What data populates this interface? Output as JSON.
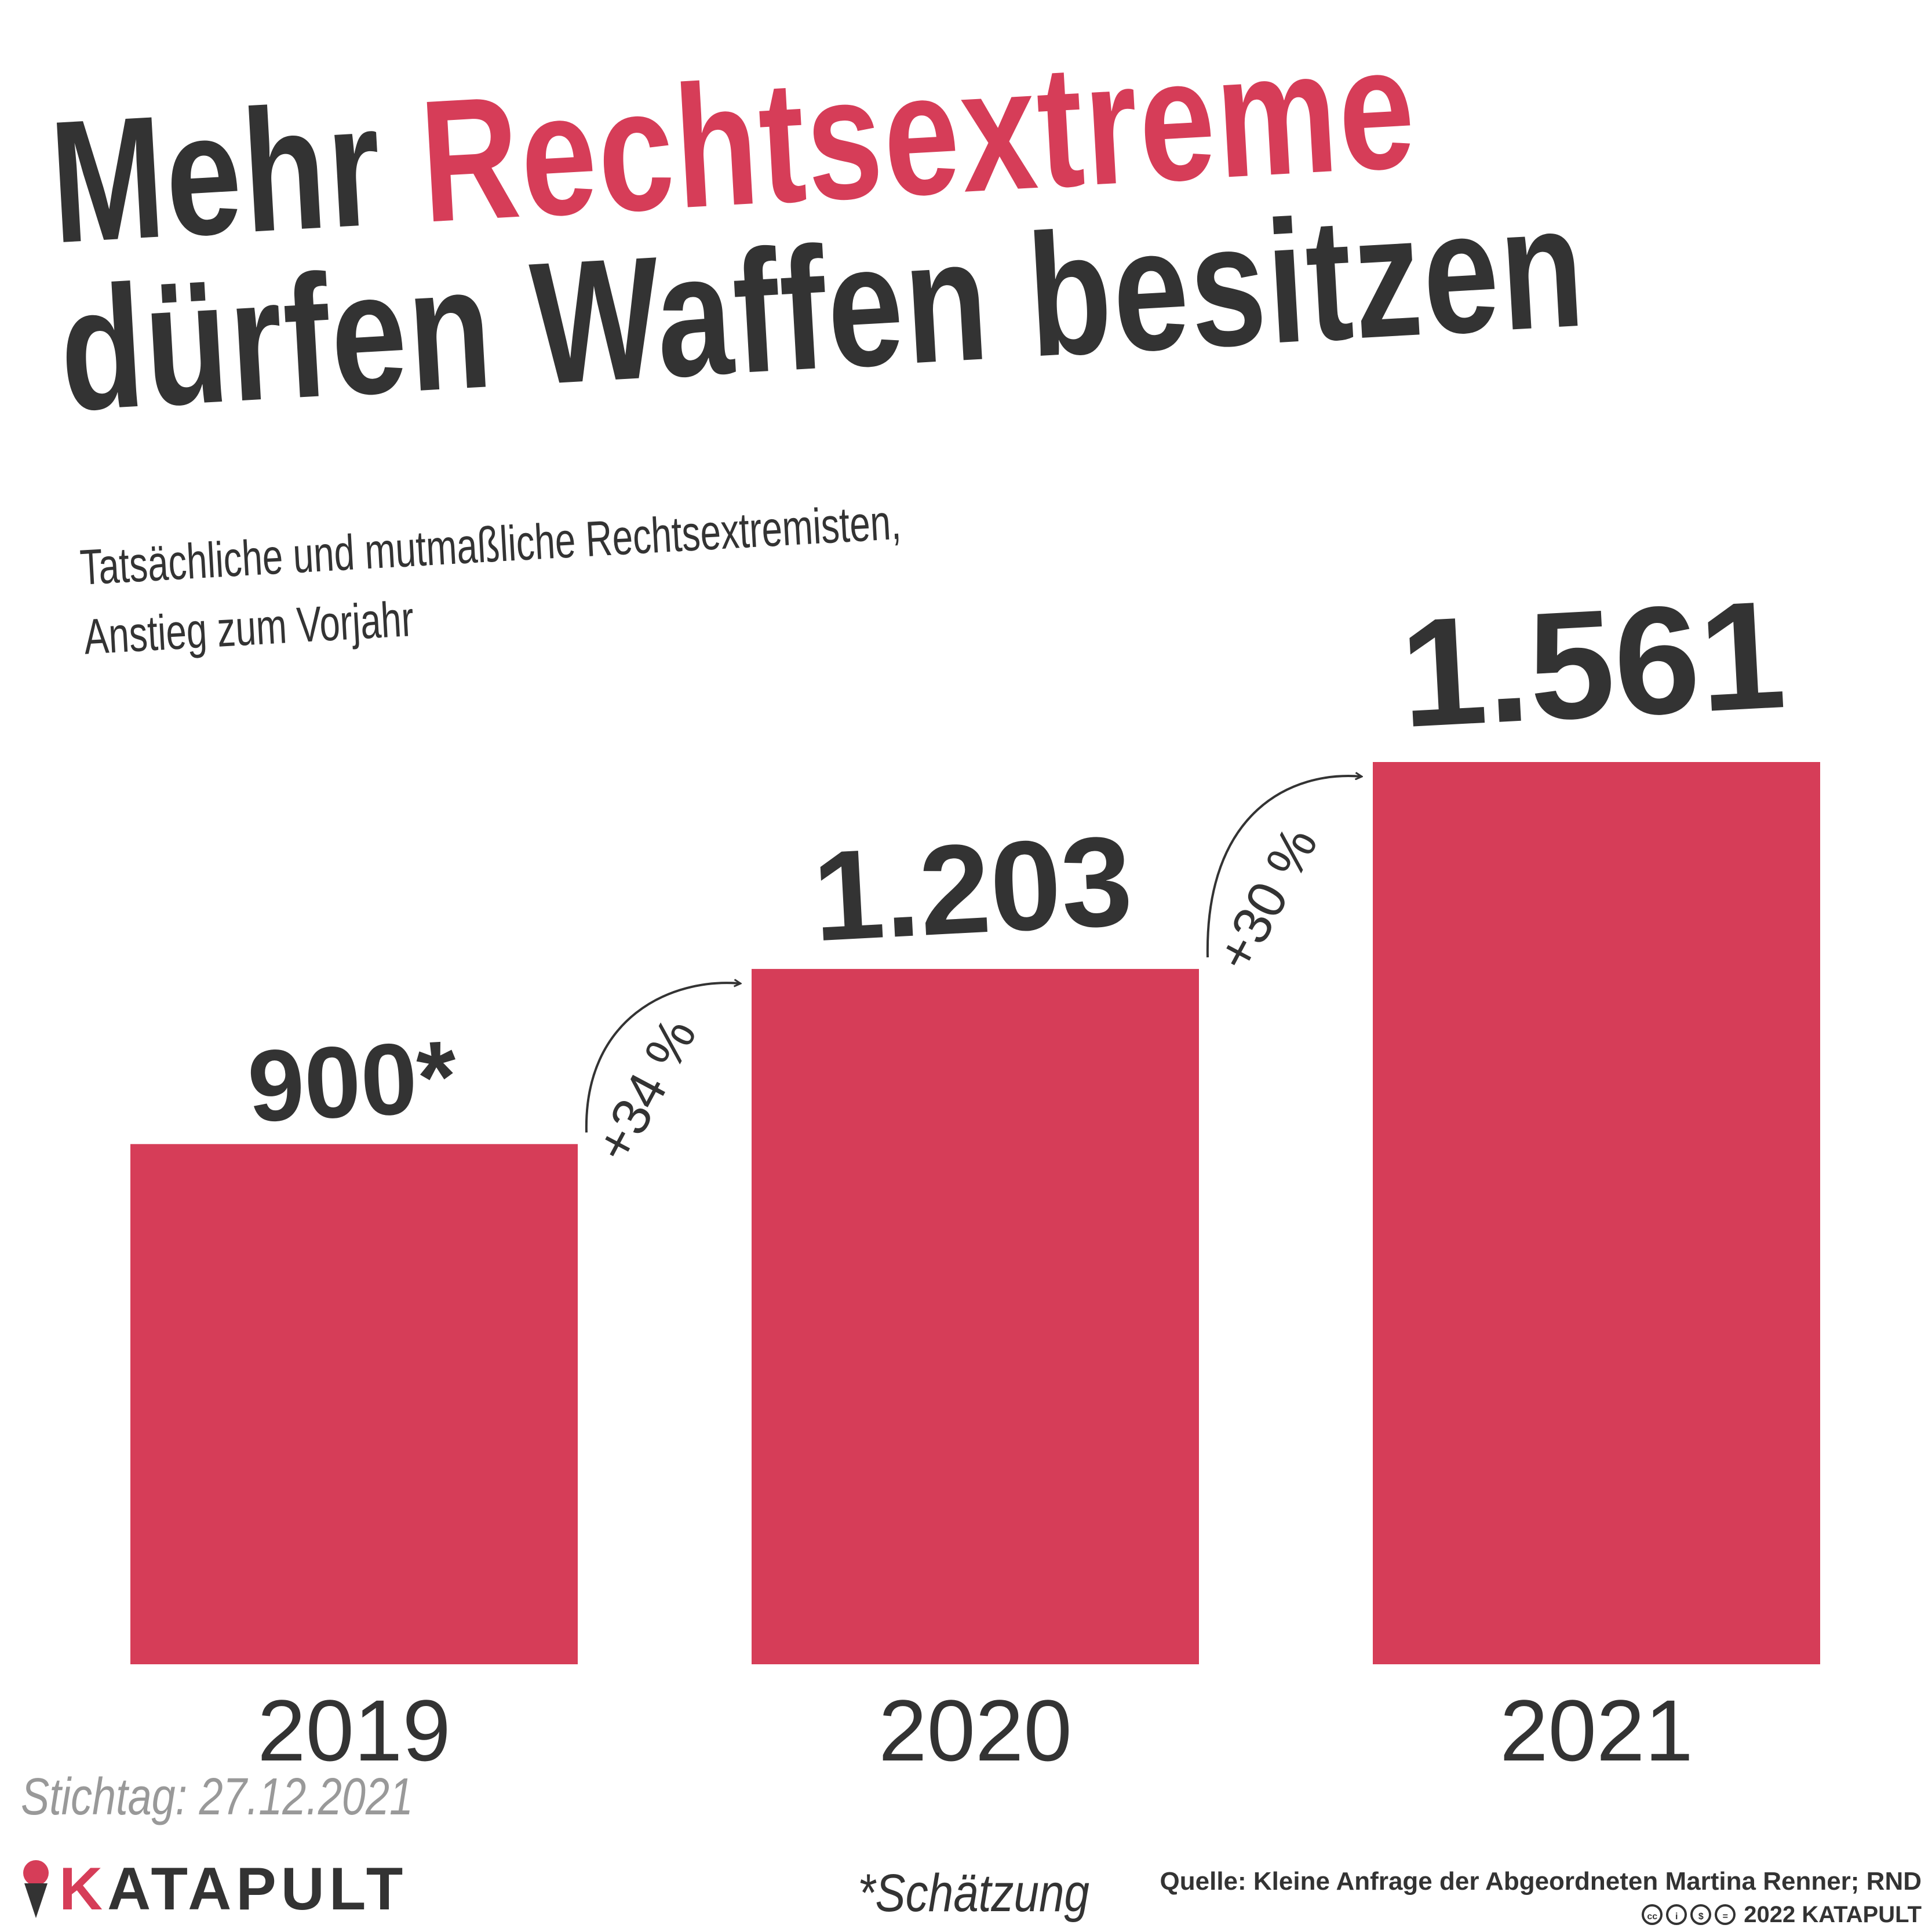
{
  "title": {
    "prefix": "Mehr",
    "highlight": "Rechtsextreme",
    "line2": "dürfen Waffen besitzen"
  },
  "subtitle": {
    "line1": "Tatsächliche und mutmaßliche Rechtsextremisten,",
    "line2": "Anstieg zum Vorjahr"
  },
  "chart_data": {
    "type": "bar",
    "title": "Mehr Rechtsextreme dürfen Waffen besitzen",
    "subtitle": "Tatsächliche und mutmaßliche Rechtsextremisten, Anstieg zum Vorjahr",
    "categories": [
      "2019",
      "2020",
      "2021"
    ],
    "values": [
      900,
      1203,
      1561
    ],
    "value_labels": [
      "900*",
      "1.203",
      "1.561"
    ],
    "changes": [
      {
        "from": "2019",
        "to": "2020",
        "label": "+34 %"
      },
      {
        "from": "2020",
        "to": "2021",
        "label": "+30 %"
      }
    ],
    "xlabel": "",
    "ylabel": "",
    "ylim": [
      0,
      1561
    ],
    "grid": false,
    "bar_color": "#d63d58"
  },
  "footer": {
    "stichtag": "Stichtag: 27.12.2021",
    "footnote": "*Schätzung",
    "source": "Quelle: Kleine Anfrage der Abgeordneten Martina Renner; RND",
    "copyright": "2022 KATAPULT",
    "logo_k": "K",
    "logo_rest": "ATAPULT"
  }
}
